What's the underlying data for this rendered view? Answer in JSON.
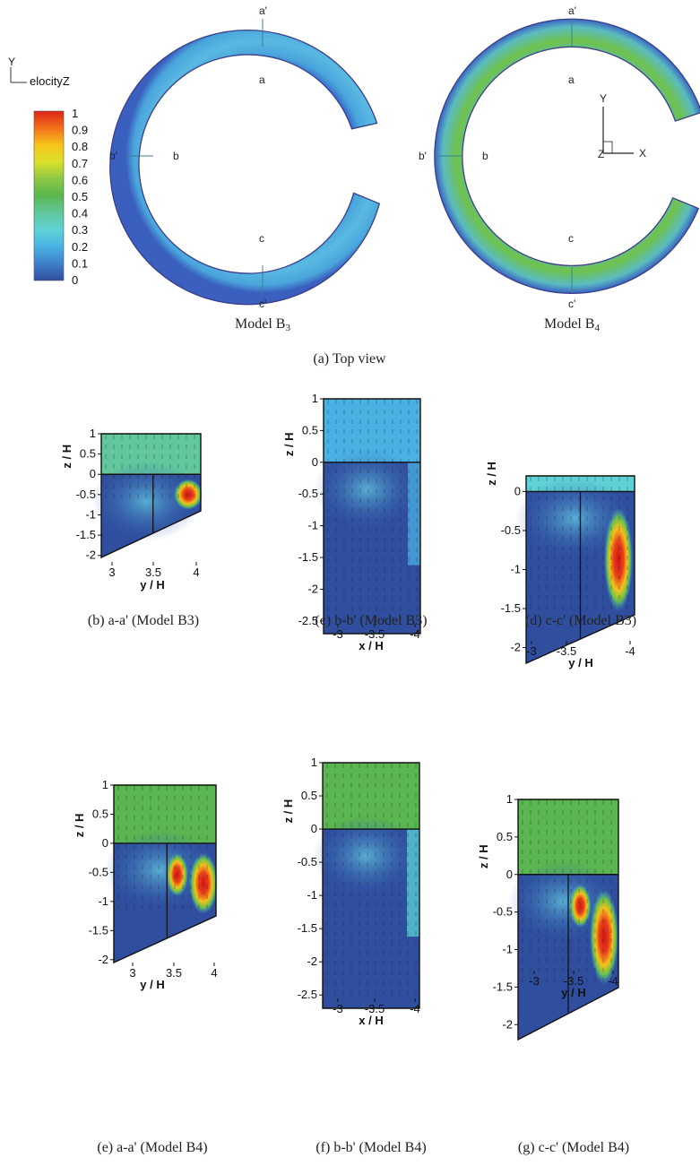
{
  "legend": {
    "title": "elocityZ",
    "levels": [
      "1",
      "0.9",
      "0.8",
      "0.7",
      "0.6",
      "0.5",
      "0.4",
      "0.3",
      "0.2",
      "0.1",
      "0"
    ],
    "colors": [
      "#dd2418",
      "#f2701a",
      "#f7c51b",
      "#dbe12c",
      "#8cc744",
      "#5ab650",
      "#62c79c",
      "#5ed2d6",
      "#49b2e2",
      "#3f7fc8",
      "#2f4f9e"
    ]
  },
  "top_view": {
    "caption": "(a) Top view",
    "models": [
      {
        "label_main": "Model B",
        "label_sub": "3",
        "mid_color": "#56b1de",
        "edge_color": "#3b75cf"
      },
      {
        "label_main": "Model B",
        "label_sub": "4",
        "mid_color": "#6dc04a",
        "edge_color": "#3f88d2"
      }
    ],
    "section_labels": {
      "a": "a",
      "ap": "a'",
      "b": "b",
      "bp": "b'",
      "c": "c",
      "cp": "c'"
    },
    "axes_glyph": {
      "y": "Y",
      "x": "X",
      "z": "Z"
    }
  },
  "chart_data": [
    {
      "type": "heatmap",
      "caption": "(b) a-a' (Model B3)",
      "xlabel": "y / H",
      "ylabel": "z / H",
      "x_ticks": [
        "3",
        "3.5",
        "4"
      ],
      "y_ticks": [
        "1",
        "0.5",
        "0",
        "-0.5",
        "-1",
        "-1.5",
        "-2"
      ],
      "xlim": [
        2.8,
        4.0
      ],
      "ylim": [
        -2.05,
        1.0
      ],
      "upper_speed": 0.4,
      "peak_speed": 1.0
    },
    {
      "type": "heatmap",
      "caption": "(c) b-b' (Model B3)",
      "xlabel": "x / H",
      "ylabel": "z / H",
      "x_ticks": [
        "-3",
        "-3.5",
        "-4"
      ],
      "y_ticks": [
        "1",
        "0.5",
        "0",
        "-0.5",
        "-1",
        "-1.5",
        "-2",
        "-2.5"
      ],
      "xlim": [
        -2.8,
        -4.0
      ],
      "ylim": [
        -2.7,
        1.0
      ],
      "upper_speed": 0.25,
      "peak_speed": 0.2
    },
    {
      "type": "heatmap",
      "caption": "(d) c-c' (Model B3)",
      "xlabel": "y / H",
      "ylabel": "z / H",
      "x_ticks": [
        "-3",
        "-3.5",
        "-4"
      ],
      "y_ticks": [
        "0",
        "-0.5",
        "-1",
        "-1.5",
        "-2"
      ],
      "xlim": [
        -2.8,
        -4.0
      ],
      "ylim": [
        -2.2,
        0.2
      ],
      "upper_speed": 0.3,
      "peak_speed": 1.0
    },
    {
      "type": "heatmap",
      "caption": "(e) a-a' (Model B4)",
      "xlabel": "y / H",
      "ylabel": "z / H",
      "x_ticks": [
        "3",
        "3.5",
        "4"
      ],
      "y_ticks": [
        "1",
        "0.5",
        "0",
        "-0.5",
        "-1",
        "-1.5",
        "-2"
      ],
      "xlim": [
        2.8,
        4.0
      ],
      "ylim": [
        -2.05,
        1.0
      ],
      "upper_speed": 0.55,
      "peak_speed": 1.0
    },
    {
      "type": "heatmap",
      "caption": "(f) b-b' (Model B4)",
      "xlabel": "x / H",
      "ylabel": "z / H",
      "x_ticks": [
        "-3",
        "-3.5",
        "-4"
      ],
      "y_ticks": [
        "1",
        "0.5",
        "0",
        "-0.5",
        "-1",
        "-1.5",
        "-2",
        "-2.5"
      ],
      "xlim": [
        -2.8,
        -4.0
      ],
      "ylim": [
        -2.7,
        1.0
      ],
      "upper_speed": 0.55,
      "peak_speed": 0.3
    },
    {
      "type": "heatmap",
      "caption": "(g) c-c' (Model B4)",
      "xlabel": "y / H",
      "ylabel": "z / H",
      "x_ticks": [
        "-3",
        "-3.5",
        "-4"
      ],
      "y_ticks": [
        "1",
        "0.5",
        "0",
        "-0.5",
        "-1",
        "-1.5",
        "-2"
      ],
      "xlim": [
        -2.8,
        -4.0
      ],
      "ylim": [
        -2.2,
        1.0
      ],
      "upper_speed": 0.5,
      "peak_speed": 1.0
    }
  ]
}
